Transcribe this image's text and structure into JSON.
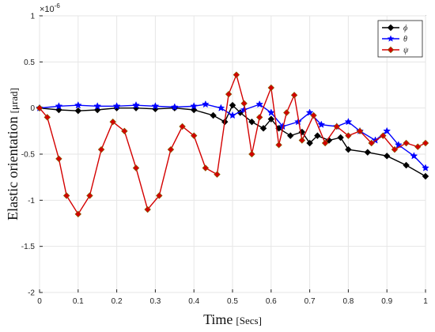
{
  "chart_data": {
    "type": "line",
    "title": "",
    "xlabel": "Time",
    "xlabel_unit": "[Secs]",
    "ylabel": "Elastic orientation",
    "ylabel_unit": "[μrad]",
    "y_multiplier": "×10",
    "y_multiplier_exp": "-6",
    "xlim": [
      0,
      1
    ],
    "ylim": [
      -2,
      1
    ],
    "xticks": [
      0,
      0.1,
      0.2,
      0.3,
      0.4,
      0.5,
      0.6,
      0.7,
      0.8,
      0.9,
      1
    ],
    "xtick_labels": [
      "0",
      "0.1",
      "0.2",
      "0.3",
      "0.4",
      "0.5",
      "0.6",
      "0.7",
      "0.8",
      "0.9",
      "1"
    ],
    "yticks": [
      -2,
      -1.5,
      -1,
      -0.5,
      0,
      0.5,
      1
    ],
    "ytick_labels": [
      "-2",
      "-1.5",
      "-1",
      "-0.5",
      "0",
      "0.5",
      "1"
    ],
    "grid": true,
    "legend_position": "top-right",
    "series": [
      {
        "name": "ϕ",
        "color": "#000000",
        "marker": "diamond",
        "x": [
          0,
          0.05,
          0.1,
          0.15,
          0.2,
          0.25,
          0.3,
          0.35,
          0.4,
          0.45,
          0.48,
          0.5,
          0.52,
          0.55,
          0.58,
          0.6,
          0.62,
          0.65,
          0.68,
          0.7,
          0.72,
          0.75,
          0.78,
          0.8,
          0.85,
          0.9,
          0.95,
          1
        ],
        "y": [
          0,
          -0.02,
          -0.03,
          -0.02,
          0.0,
          0.0,
          -0.01,
          0.0,
          -0.02,
          -0.08,
          -0.15,
          0.03,
          -0.05,
          -0.15,
          -0.22,
          -0.12,
          -0.22,
          -0.3,
          -0.26,
          -0.38,
          -0.3,
          -0.35,
          -0.32,
          -0.45,
          -0.48,
          -0.52,
          -0.62,
          -0.74
        ]
      },
      {
        "name": "θ",
        "color": "#0000ff",
        "marker": "star",
        "x": [
          0,
          0.05,
          0.1,
          0.15,
          0.2,
          0.25,
          0.3,
          0.35,
          0.4,
          0.43,
          0.47,
          0.5,
          0.53,
          0.57,
          0.6,
          0.63,
          0.67,
          0.7,
          0.73,
          0.77,
          0.8,
          0.83,
          0.87,
          0.9,
          0.93,
          0.97,
          1
        ],
        "y": [
          0,
          0.02,
          0.03,
          0.02,
          0.02,
          0.03,
          0.02,
          0.01,
          0.02,
          0.04,
          0.0,
          -0.08,
          -0.02,
          0.04,
          -0.05,
          -0.2,
          -0.15,
          -0.05,
          -0.18,
          -0.2,
          -0.15,
          -0.25,
          -0.35,
          -0.25,
          -0.4,
          -0.52,
          -0.65
        ]
      },
      {
        "name": "ψ",
        "color": "#d40000",
        "marker": "diamond",
        "x": [
          0,
          0.02,
          0.05,
          0.07,
          0.1,
          0.13,
          0.16,
          0.19,
          0.22,
          0.25,
          0.28,
          0.31,
          0.34,
          0.37,
          0.4,
          0.43,
          0.46,
          0.49,
          0.51,
          0.53,
          0.55,
          0.57,
          0.6,
          0.62,
          0.64,
          0.66,
          0.68,
          0.71,
          0.74,
          0.77,
          0.8,
          0.83,
          0.86,
          0.89,
          0.92,
          0.95,
          0.98,
          1
        ],
        "y": [
          0,
          -0.1,
          -0.55,
          -0.95,
          -1.15,
          -0.95,
          -0.45,
          -0.15,
          -0.25,
          -0.65,
          -1.1,
          -0.95,
          -0.45,
          -0.2,
          -0.3,
          -0.65,
          -0.72,
          0.15,
          0.36,
          0.05,
          -0.5,
          -0.1,
          0.22,
          -0.4,
          -0.05,
          0.14,
          -0.35,
          -0.08,
          -0.38,
          -0.2,
          -0.3,
          -0.25,
          -0.38,
          -0.3,
          -0.45,
          -0.38,
          -0.42,
          -0.38
        ]
      }
    ]
  }
}
